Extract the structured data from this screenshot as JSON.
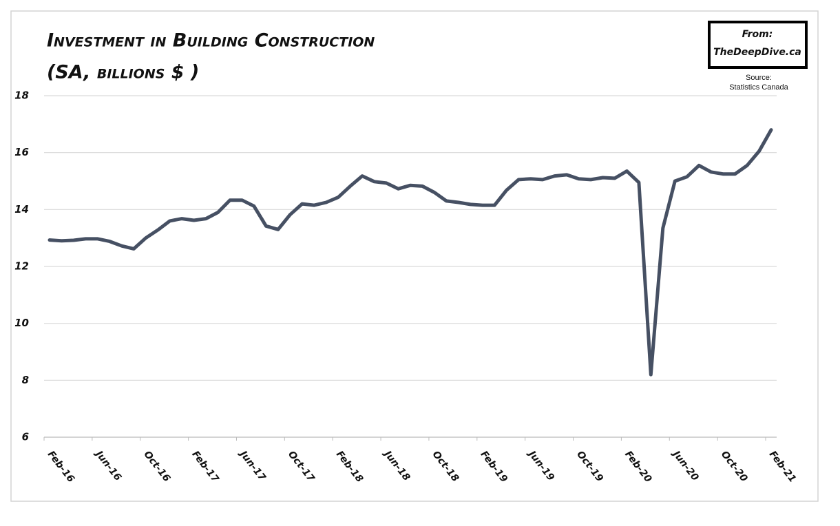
{
  "chart_data": {
    "type": "line",
    "title": "Investment in Building Construction",
    "subtitle": "(SA, billions $ )",
    "badge": {
      "line1": "From:",
      "line2": "TheDeepDive.ca"
    },
    "source": {
      "line1": "Source:",
      "line2": "Statistics Canada"
    },
    "categories": [
      "Feb-16",
      null,
      null,
      null,
      "Jun-16",
      null,
      null,
      null,
      "Oct-16",
      null,
      null,
      null,
      "Feb-17",
      null,
      null,
      null,
      "Jun-17",
      null,
      null,
      null,
      "Oct-17",
      null,
      null,
      null,
      "Feb-18",
      null,
      null,
      null,
      "Jun-18",
      null,
      null,
      null,
      "Oct-18",
      null,
      null,
      null,
      "Feb-19",
      null,
      null,
      null,
      "Jun-19",
      null,
      null,
      null,
      "Oct-19",
      null,
      null,
      null,
      "Feb-20",
      null,
      null,
      null,
      "Jun-20",
      null,
      null,
      null,
      "Oct-20",
      null,
      null,
      null,
      "Feb-21"
    ],
    "values": [
      12.93,
      12.9,
      12.92,
      12.97,
      12.97,
      12.88,
      12.72,
      12.62,
      13.0,
      13.28,
      13.6,
      13.68,
      13.62,
      13.68,
      13.9,
      14.33,
      14.33,
      14.12,
      13.42,
      13.3,
      13.82,
      14.2,
      14.15,
      14.25,
      14.43,
      14.82,
      15.18,
      14.98,
      14.93,
      14.73,
      14.85,
      14.82,
      14.6,
      14.3,
      14.25,
      14.18,
      14.15,
      14.15,
      14.68,
      15.05,
      15.08,
      15.05,
      15.18,
      15.22,
      15.08,
      15.05,
      15.12,
      15.1,
      15.35,
      14.95,
      8.2,
      13.35,
      15.0,
      15.15,
      15.55,
      15.32,
      15.25,
      15.25,
      15.55,
      16.05,
      16.8
    ],
    "color": "#465063",
    "ylim": [
      6,
      18
    ],
    "yticks": [
      6,
      8,
      10,
      12,
      14,
      16,
      18
    ],
    "grid": true
  }
}
